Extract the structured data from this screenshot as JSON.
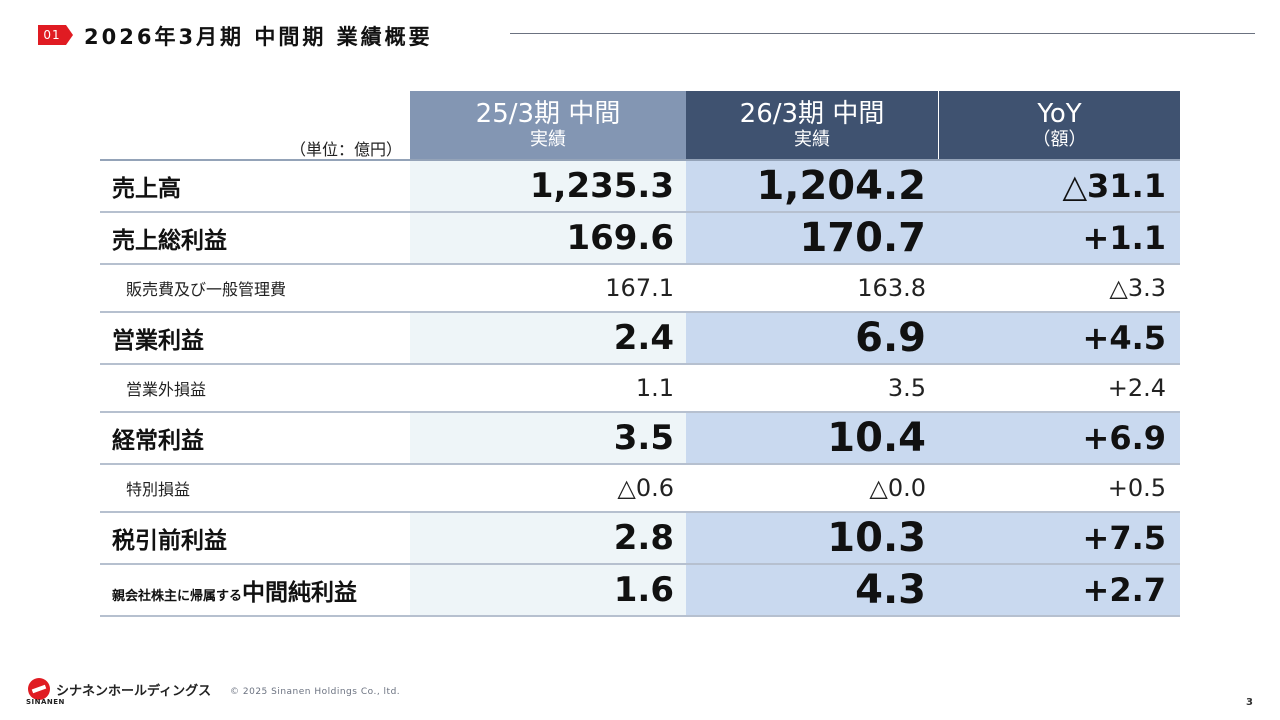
{
  "header": {
    "section_number": "01",
    "title": "2026年3月期 中間期 業績概要"
  },
  "table": {
    "unit": "（単位：億円）",
    "columns": [
      {
        "title": "25/3期 中間",
        "subtitle": "実績"
      },
      {
        "title": "26/3期 中間",
        "subtitle": "実績"
      },
      {
        "title": "YoY",
        "subtitle": "（額）"
      }
    ],
    "rows": [
      {
        "label": "売上高",
        "prev": "1,235.3",
        "curr": "1,204.2",
        "yoy": "△31.1"
      },
      {
        "label": "売上総利益",
        "prev": "169.6",
        "curr": "170.7",
        "yoy": "+1.1"
      },
      {
        "label": "販売費及び一般管理費",
        "prev": "167.1",
        "curr": "163.8",
        "yoy": "△3.3"
      },
      {
        "label": "営業利益",
        "prev": "2.4",
        "curr": "6.9",
        "yoy": "+4.5"
      },
      {
        "label": "営業外損益",
        "prev": "1.1",
        "curr": "3.5",
        "yoy": "+2.4"
      },
      {
        "label": "経常利益",
        "prev": "3.5",
        "curr": "10.4",
        "yoy": "+6.9"
      },
      {
        "label": "特別損益",
        "prev": "△0.6",
        "curr": "△0.0",
        "yoy": "+0.5"
      },
      {
        "label": "税引前利益",
        "prev": "2.8",
        "curr": "10.3",
        "yoy": "+7.5"
      },
      {
        "label_small": "親会社株主に帰属する",
        "label_big": "中間純利益",
        "prev": "1.6",
        "curr": "4.3",
        "yoy": "+2.7"
      }
    ]
  },
  "footer": {
    "logo_text": "シナネンホールディングス",
    "logo_sub": "SINANEN",
    "copyright": "© 2025 Sinanen Holdings Co., ltd.",
    "page_number": "3"
  },
  "colors": {
    "accent_red": "#e01b22",
    "header_prev": "#8396b3",
    "header_curr": "#3f5270",
    "cell_highlight": "#c9d9ef",
    "cell_prev": "#eef5f8"
  }
}
